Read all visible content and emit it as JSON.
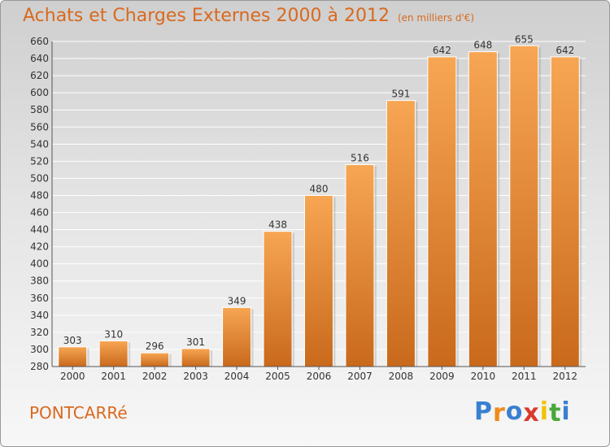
{
  "colors": {
    "accent": "#d9691e",
    "bar_top": "#f7a653",
    "bar_bottom": "#c9691c",
    "axis_text": "#333333",
    "grid": "#ffffff"
  },
  "commune": "PONTCARRé",
  "brand": {
    "text": "Proxiti",
    "letter_colors": [
      "#3a7fd0",
      "#f08a1a",
      "#3a7fd0",
      "#d93a2b",
      "#f3c200",
      "#4aa83a",
      "#3a7fd0"
    ]
  },
  "chart_data": {
    "type": "bar",
    "title": "Achats et Charges Externes 2000 à 2012",
    "subtitle": "(en milliers d'€)",
    "xlabel": "",
    "ylabel": "",
    "categories": [
      "2000",
      "2001",
      "2002",
      "2003",
      "2004",
      "2005",
      "2006",
      "2007",
      "2008",
      "2009",
      "2010",
      "2011",
      "2012"
    ],
    "values": [
      303,
      310,
      296,
      301,
      349,
      438,
      480,
      516,
      591,
      642,
      648,
      655,
      642
    ],
    "ylim": [
      280,
      660
    ],
    "ytick_step": 20,
    "grid": true,
    "legend": "none"
  }
}
